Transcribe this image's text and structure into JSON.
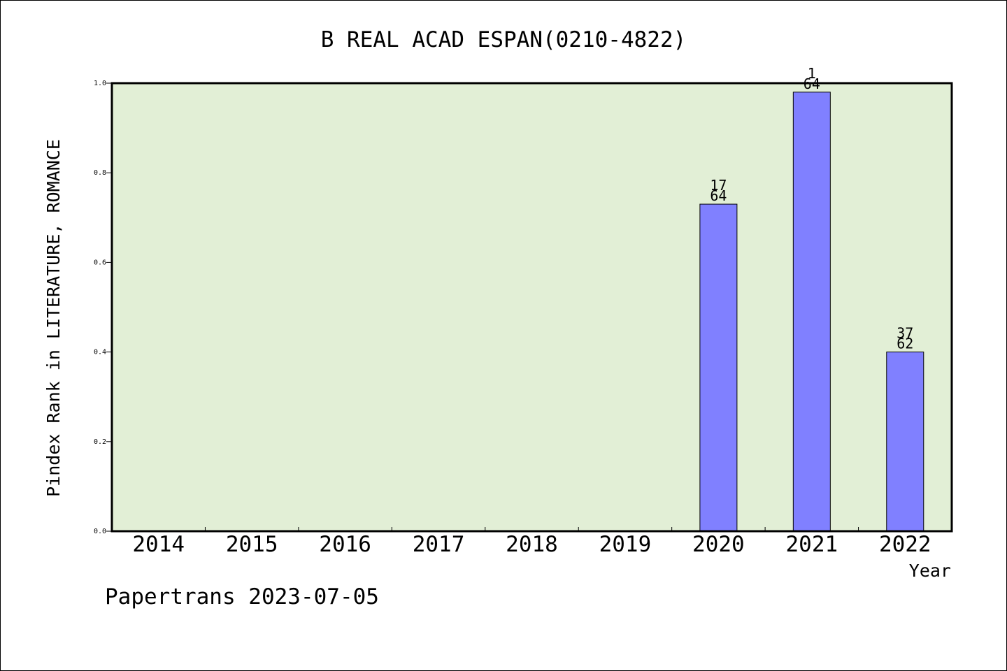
{
  "chart_data": {
    "type": "bar",
    "title": "B REAL ACAD ESPAN(0210-4822)",
    "xlabel": "Year",
    "ylabel": "Pindex Rank in LITERATURE, ROMANCE",
    "categories": [
      "2014",
      "2015",
      "2016",
      "2017",
      "2018",
      "2019",
      "2020",
      "2021",
      "2022"
    ],
    "values": [
      null,
      null,
      null,
      null,
      null,
      null,
      0.73,
      0.98,
      0.4
    ],
    "rank_labels": [
      null,
      null,
      null,
      null,
      null,
      null,
      {
        "rank": "17",
        "total": "64"
      },
      {
        "rank": "1",
        "total": "64"
      },
      {
        "rank": "37",
        "total": "62"
      }
    ],
    "ylim": [
      0,
      1.0
    ],
    "yticks": [
      "0.0",
      "0.2",
      "0.4",
      "0.6",
      "0.8",
      "1.0"
    ],
    "grid": false,
    "colors": {
      "plot_bg": "#e2efd6",
      "bar": "#8080ff",
      "bar_edge": "#000000"
    }
  },
  "footer": {
    "text": "Papertrans 2023-07-05"
  }
}
